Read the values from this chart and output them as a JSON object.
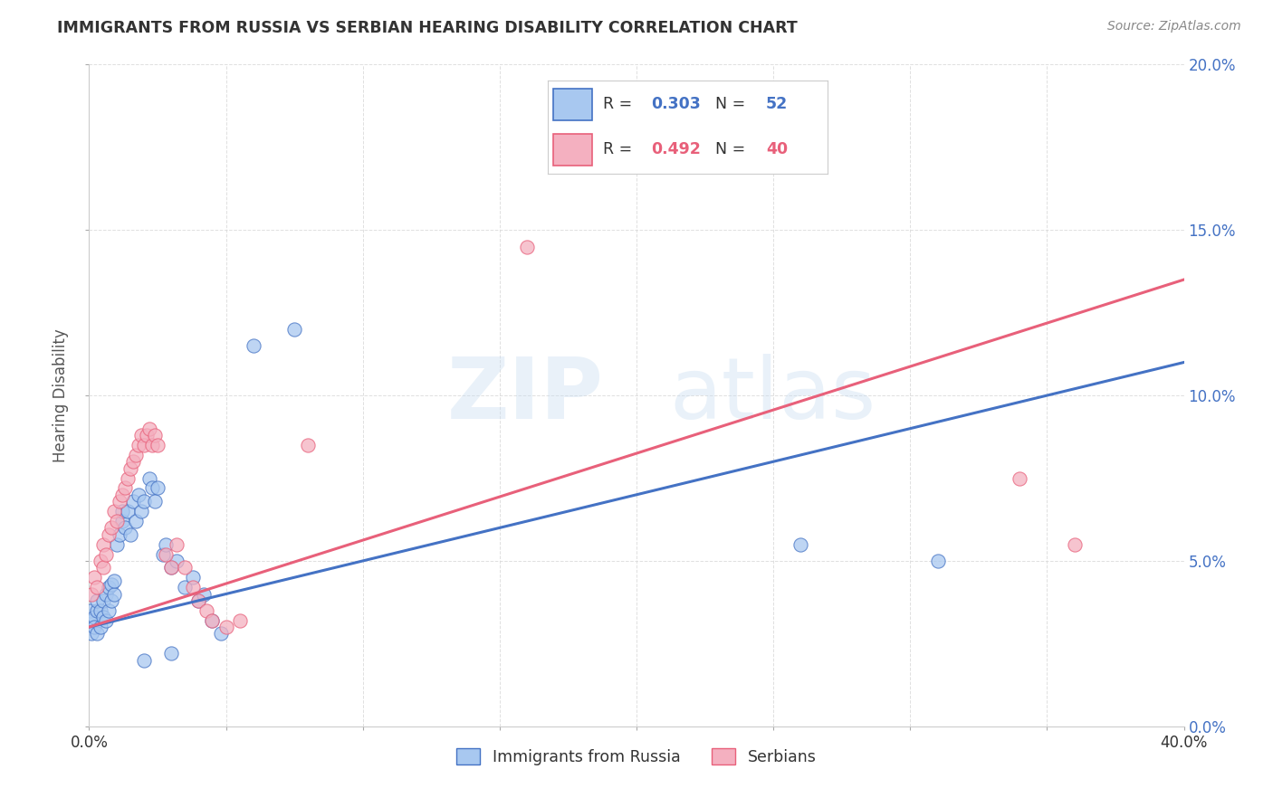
{
  "title": "IMMIGRANTS FROM RUSSIA VS SERBIAN HEARING DISABILITY CORRELATION CHART",
  "source": "Source: ZipAtlas.com",
  "ylabel_label": "Hearing Disability",
  "watermark_zip": "ZIP",
  "watermark_atlas": "atlas",
  "legend_entries": [
    {
      "label": "Immigrants from Russia",
      "R": 0.303,
      "N": 52
    },
    {
      "label": "Serbians",
      "R": 0.492,
      "N": 40
    }
  ],
  "xlim": [
    0.0,
    0.4
  ],
  "ylim": [
    0.0,
    0.2
  ],
  "xtick_positions": [
    0.0,
    0.05,
    0.1,
    0.15,
    0.2,
    0.25,
    0.3,
    0.35,
    0.4
  ],
  "xtick_labels_show": [
    "0.0%",
    "",
    "",
    "",
    "",
    "",
    "",
    "",
    "40.0%"
  ],
  "yticks": [
    0.0,
    0.05,
    0.1,
    0.15,
    0.2
  ],
  "ytick_labels_right": [
    "0.0%",
    "5.0%",
    "10.0%",
    "15.0%",
    "20.0%"
  ],
  "scatter_blue": [
    [
      0.0005,
      0.035
    ],
    [
      0.001,
      0.028
    ],
    [
      0.001,
      0.032
    ],
    [
      0.002,
      0.033
    ],
    [
      0.002,
      0.03
    ],
    [
      0.003,
      0.028
    ],
    [
      0.003,
      0.035
    ],
    [
      0.003,
      0.038
    ],
    [
      0.004,
      0.03
    ],
    [
      0.004,
      0.035
    ],
    [
      0.005,
      0.033
    ],
    [
      0.005,
      0.038
    ],
    [
      0.006,
      0.032
    ],
    [
      0.006,
      0.04
    ],
    [
      0.007,
      0.035
    ],
    [
      0.007,
      0.042
    ],
    [
      0.008,
      0.038
    ],
    [
      0.008,
      0.043
    ],
    [
      0.009,
      0.04
    ],
    [
      0.009,
      0.044
    ],
    [
      0.01,
      0.055
    ],
    [
      0.011,
      0.058
    ],
    [
      0.012,
      0.062
    ],
    [
      0.012,
      0.065
    ],
    [
      0.013,
      0.06
    ],
    [
      0.014,
      0.065
    ],
    [
      0.015,
      0.058
    ],
    [
      0.016,
      0.068
    ],
    [
      0.017,
      0.062
    ],
    [
      0.018,
      0.07
    ],
    [
      0.019,
      0.065
    ],
    [
      0.02,
      0.068
    ],
    [
      0.022,
      0.075
    ],
    [
      0.023,
      0.072
    ],
    [
      0.024,
      0.068
    ],
    [
      0.025,
      0.072
    ],
    [
      0.027,
      0.052
    ],
    [
      0.028,
      0.055
    ],
    [
      0.03,
      0.048
    ],
    [
      0.032,
      0.05
    ],
    [
      0.035,
      0.042
    ],
    [
      0.038,
      0.045
    ],
    [
      0.04,
      0.038
    ],
    [
      0.042,
      0.04
    ],
    [
      0.045,
      0.032
    ],
    [
      0.048,
      0.028
    ],
    [
      0.02,
      0.02
    ],
    [
      0.03,
      0.022
    ],
    [
      0.06,
      0.115
    ],
    [
      0.075,
      0.12
    ],
    [
      0.26,
      0.055
    ],
    [
      0.31,
      0.05
    ]
  ],
  "scatter_pink": [
    [
      0.001,
      0.04
    ],
    [
      0.002,
      0.045
    ],
    [
      0.003,
      0.042
    ],
    [
      0.004,
      0.05
    ],
    [
      0.005,
      0.048
    ],
    [
      0.005,
      0.055
    ],
    [
      0.006,
      0.052
    ],
    [
      0.007,
      0.058
    ],
    [
      0.008,
      0.06
    ],
    [
      0.009,
      0.065
    ],
    [
      0.01,
      0.062
    ],
    [
      0.011,
      0.068
    ],
    [
      0.012,
      0.07
    ],
    [
      0.013,
      0.072
    ],
    [
      0.014,
      0.075
    ],
    [
      0.015,
      0.078
    ],
    [
      0.016,
      0.08
    ],
    [
      0.017,
      0.082
    ],
    [
      0.018,
      0.085
    ],
    [
      0.019,
      0.088
    ],
    [
      0.02,
      0.085
    ],
    [
      0.021,
      0.088
    ],
    [
      0.022,
      0.09
    ],
    [
      0.023,
      0.085
    ],
    [
      0.024,
      0.088
    ],
    [
      0.025,
      0.085
    ],
    [
      0.028,
      0.052
    ],
    [
      0.03,
      0.048
    ],
    [
      0.032,
      0.055
    ],
    [
      0.035,
      0.048
    ],
    [
      0.038,
      0.042
    ],
    [
      0.04,
      0.038
    ],
    [
      0.043,
      0.035
    ],
    [
      0.045,
      0.032
    ],
    [
      0.05,
      0.03
    ],
    [
      0.055,
      0.032
    ],
    [
      0.08,
      0.085
    ],
    [
      0.16,
      0.145
    ],
    [
      0.34,
      0.075
    ],
    [
      0.36,
      0.055
    ]
  ],
  "trendline_blue": {
    "x_start": 0.0,
    "x_end": 0.4,
    "y_start": 0.03,
    "y_end": 0.11
  },
  "trendline_pink": {
    "x_start": 0.0,
    "x_end": 0.4,
    "y_start": 0.03,
    "y_end": 0.135
  },
  "blue_color": "#4472c4",
  "pink_color": "#e8607a",
  "blue_scatter_face": "#a8c8f0",
  "pink_scatter_face": "#f4b0c0",
  "background_color": "#ffffff",
  "grid_color": "#d8d8d8",
  "right_axis_color": "#4472c4"
}
